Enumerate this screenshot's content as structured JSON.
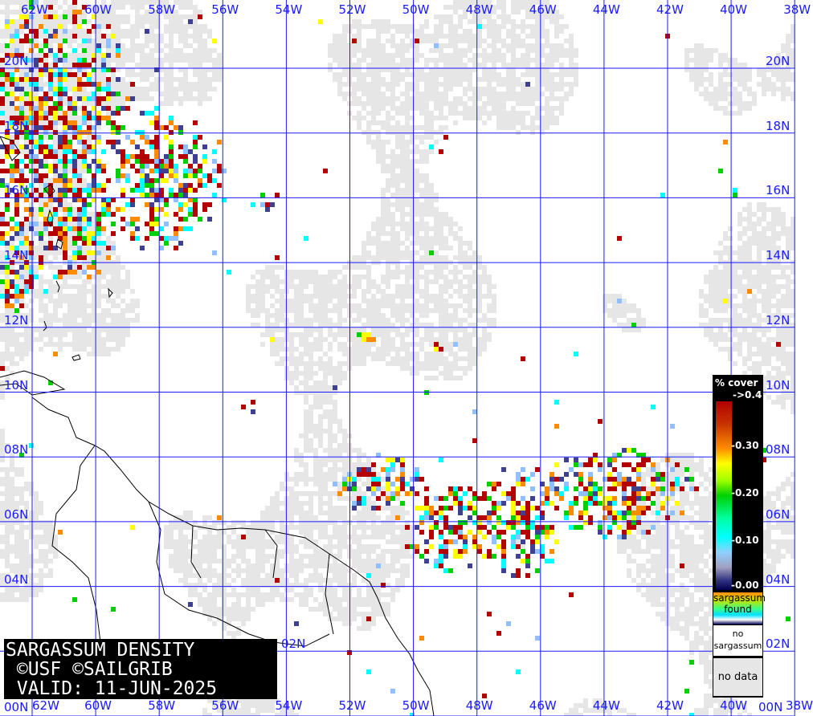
{
  "map": {
    "longitude_labels": [
      "62W",
      "60W",
      "58W",
      "56W",
      "54W",
      "52W",
      "50W",
      "48W",
      "46W",
      "44W",
      "42W",
      "40W",
      "38W"
    ],
    "latitude_labels": [
      "20N",
      "18N",
      "16N",
      "14N",
      "12N",
      "10N",
      "08N",
      "06N",
      "04N",
      "02N",
      "00N"
    ],
    "grid_color": "#1a1aff",
    "coastline_color": "#000000",
    "no_data_color": "#e6e6e6"
  },
  "title_box": {
    "line1": "SARGASSUM DENSITY",
    "line2": " ©USF ©SAILGRIB",
    "line3": " VALID: 11-JUN-2025"
  },
  "legend": {
    "title": "% cover",
    "ticks": [
      "->0.4",
      "-0.30",
      "-0.20",
      "-0.10",
      "-0.00"
    ],
    "found_line1": "sargassum",
    "found_line2": "found",
    "none_line1": "no",
    "none_line2": "sargassum",
    "no_data": "no data",
    "colors": [
      "#b30000",
      "#ff8c00",
      "#ffff00",
      "#00d000",
      "#00ffff",
      "#a0a0c0",
      "#000050"
    ]
  }
}
